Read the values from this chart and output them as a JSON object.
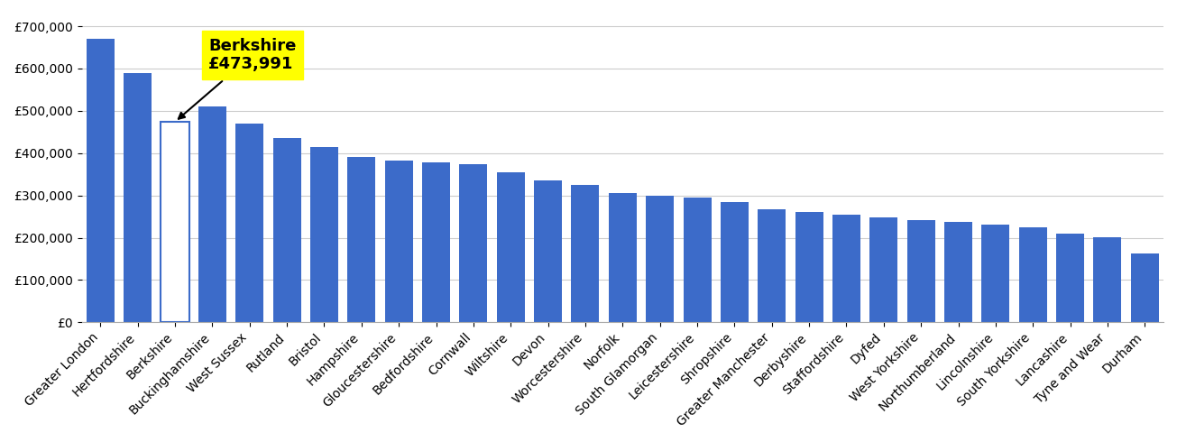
{
  "categories": [
    "Greater London",
    "Hertfordshire",
    "Berkshire",
    "Buckinghamshire",
    "West Sussex",
    "Rutland",
    "Bristol",
    "Hampshire",
    "Gloucestershire",
    "Bedfordshire",
    "Cornwall",
    "Wiltshire",
    "Devon",
    "Worcestershire",
    "Norfolk",
    "South Glamorgan",
    "Leicestershire",
    "Shropshire",
    "Greater Manchester",
    "Derbyshire",
    "Staffordshire",
    "Dyfed",
    "West Yorkshire",
    "Northumberland",
    "Lincolnshire",
    "South Yorkshire",
    "Lancashire",
    "Tyne and Wear",
    "Durham"
  ],
  "values": [
    670000,
    590000,
    473991,
    510000,
    470000,
    435000,
    415000,
    390000,
    383000,
    378000,
    373000,
    355000,
    335000,
    325000,
    305000,
    300000,
    295000,
    285000,
    268000,
    260000,
    255000,
    248000,
    242000,
    237000,
    232000,
    225000,
    210000,
    202000,
    163000
  ],
  "berkshire_index": 2,
  "bar_color": "#3c6bc9",
  "highlight_bar_color": "#ffffff",
  "highlight_bar_edge_color": "#3c6bc9",
  "annotation_bg_color": "#ffff00",
  "annotation_text_color": "#000000",
  "annotation_label": "Berkshire",
  "annotation_value": "£473,991",
  "ylim": [
    0,
    730000
  ],
  "yticks": [
    0,
    100000,
    200000,
    300000,
    400000,
    500000,
    600000,
    700000
  ],
  "ytick_labels": [
    "£0",
    "£100,000",
    "£200,000",
    "£300,000",
    "£400,000",
    "£500,000",
    "£600,000",
    "£700,000"
  ],
  "grid_color": "#cccccc",
  "background_color": "#ffffff",
  "tick_fontsize": 10,
  "annotation_fontsize": 13
}
